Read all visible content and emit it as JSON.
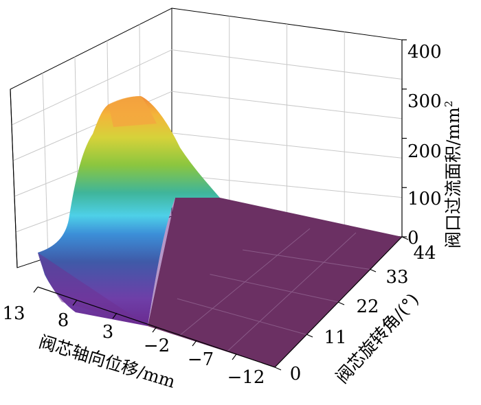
{
  "chart_data": {
    "type": "surface3d",
    "x": {
      "label": "阀芯轴向位移/mm",
      "ticks": [
        "13",
        "8",
        "3",
        "−2",
        "−7",
        "−12"
      ],
      "range": [
        13,
        -14
      ]
    },
    "y": {
      "label": "阀芯旋转角/(°)",
      "ticks": [
        "0",
        "11",
        "22",
        "33",
        "44"
      ],
      "range": [
        0,
        44
      ]
    },
    "z": {
      "label_main": "阀口过流面积/mm",
      "label_sup": "2",
      "ticks": [
        "0",
        "100",
        "200",
        "300",
        "400"
      ],
      "range": [
        0,
        400
      ]
    },
    "grid": true,
    "colormap": "viridis-like (purple → blue → cyan → green → yellow → orange)",
    "surface_rows": [
      {
        "angle": 0,
        "displacement": [
          13,
          11,
          9,
          7,
          5,
          3,
          1,
          -1,
          -3,
          -5,
          -7,
          -9,
          -12
        ],
        "area": [
          0,
          0,
          0,
          0,
          0,
          0,
          0,
          0,
          0,
          0,
          0,
          0,
          0
        ]
      },
      {
        "angle": 11,
        "displacement": [
          13,
          11,
          9,
          7,
          5,
          3,
          1,
          -1,
          -3,
          -5,
          -7,
          -9,
          -12
        ],
        "area": [
          60,
          110,
          150,
          160,
          150,
          100,
          0,
          0,
          0,
          0,
          0,
          0,
          0
        ]
      },
      {
        "angle": 22,
        "displacement": [
          13,
          11,
          9,
          7,
          5,
          3,
          1,
          -1,
          -3,
          -5,
          -7,
          -9,
          -12
        ],
        "area": [
          110,
          200,
          250,
          260,
          250,
          190,
          20,
          0,
          0,
          0,
          0,
          0,
          0
        ]
      },
      {
        "angle": 33,
        "displacement": [
          13,
          11,
          9,
          7,
          5,
          3,
          1,
          -1,
          -3,
          -5,
          -7,
          -9,
          -12
        ],
        "area": [
          150,
          270,
          320,
          330,
          310,
          220,
          20,
          0,
          0,
          0,
          0,
          0,
          0
        ]
      },
      {
        "angle": 44,
        "displacement": [
          13,
          11,
          9,
          7,
          5,
          3,
          1,
          -1,
          -3,
          -5,
          -7,
          -9,
          -12
        ],
        "area": [
          150,
          265,
          320,
          330,
          305,
          215,
          15,
          0,
          0,
          0,
          0,
          0,
          0
        ]
      }
    ]
  }
}
